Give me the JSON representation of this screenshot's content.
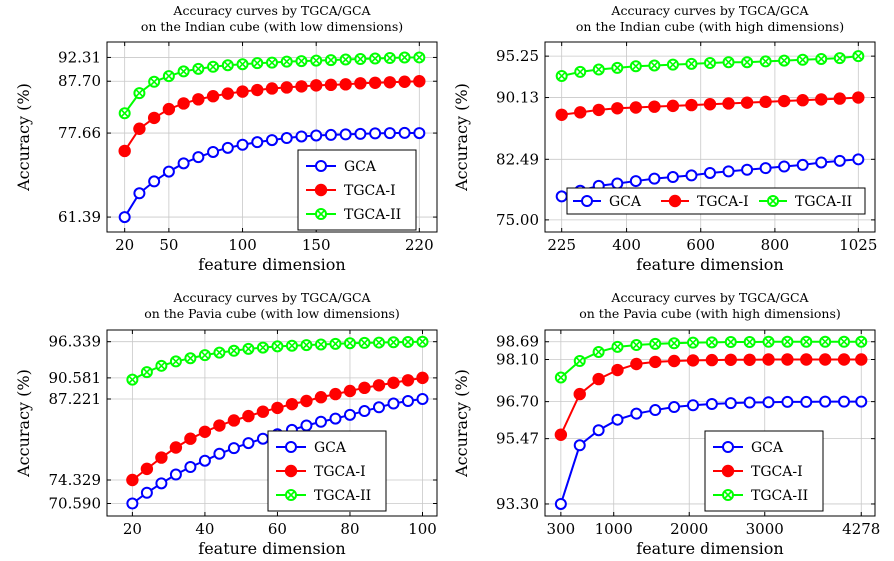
{
  "chart_data": [
    {
      "type": "line",
      "title": [
        "Accuracy curves by TGCA/GCA",
        "on the Indian cube (with low dimensions)"
      ],
      "xlabel": "feature dimension",
      "ylabel": "Accuracy (%)",
      "xlim": [
        8,
        232
      ],
      "ylim": [
        58.5,
        95.3
      ],
      "xticks": [
        20,
        50,
        100,
        150,
        220
      ],
      "yticks": [
        61.39,
        77.66,
        87.7,
        92.31
      ],
      "ytick_labels": [
        "61.39",
        "77.66",
        "87.70",
        "92.31"
      ],
      "grid": true,
      "legend_position": "lower-right",
      "x": [
        20,
        30,
        40,
        50,
        60,
        70,
        80,
        90,
        100,
        110,
        120,
        130,
        140,
        150,
        160,
        170,
        180,
        190,
        200,
        210,
        220
      ],
      "series": [
        {
          "name": "GCA",
          "color": "#0000ff",
          "marker": "open-circle",
          "values": [
            61.39,
            66.0,
            68.3,
            70.2,
            71.8,
            73.0,
            74.0,
            74.8,
            75.4,
            75.9,
            76.3,
            76.7,
            77.0,
            77.2,
            77.3,
            77.4,
            77.5,
            77.6,
            77.65,
            77.7,
            77.66
          ]
        },
        {
          "name": "TGCA-I",
          "color": "#ff0000",
          "marker": "filled-circle",
          "values": [
            74.2,
            78.5,
            80.6,
            82.3,
            83.4,
            84.2,
            84.8,
            85.3,
            85.7,
            86.0,
            86.3,
            86.5,
            86.7,
            86.9,
            87.0,
            87.1,
            87.3,
            87.4,
            87.5,
            87.6,
            87.7
          ]
        },
        {
          "name": "TGCA-II",
          "color": "#00ff00",
          "marker": "crossed-circle",
          "values": [
            81.5,
            85.4,
            87.6,
            88.7,
            89.6,
            90.1,
            90.5,
            90.8,
            91.0,
            91.2,
            91.3,
            91.5,
            91.6,
            91.7,
            91.8,
            91.9,
            92.0,
            92.1,
            92.2,
            92.3,
            92.31
          ]
        }
      ]
    },
    {
      "type": "line",
      "title": [
        "Accuracy curves by TGCA/GCA",
        "on the Indian cube (with high dimensions)"
      ],
      "xlabel": "feature dimension",
      "ylabel": "Accuracy (%)",
      "xlim": [
        180,
        1070
      ],
      "ylim": [
        73.5,
        97.0
      ],
      "xticks": [
        225,
        400,
        600,
        800,
        1025
      ],
      "yticks": [
        75.0,
        82.49,
        90.13,
        95.25
      ],
      "ytick_labels": [
        "75.00",
        "82.49",
        "90.13",
        "95.25"
      ],
      "grid": true,
      "legend_position": "lower-center",
      "x": [
        225,
        275,
        325,
        375,
        425,
        475,
        525,
        575,
        625,
        675,
        725,
        775,
        825,
        875,
        925,
        975,
        1025
      ],
      "series": [
        {
          "name": "GCA",
          "color": "#0000ff",
          "marker": "open-circle",
          "values": [
            77.9,
            78.6,
            79.2,
            79.5,
            79.8,
            80.1,
            80.3,
            80.5,
            80.8,
            81.0,
            81.2,
            81.4,
            81.6,
            81.8,
            82.1,
            82.3,
            82.49
          ]
        },
        {
          "name": "TGCA-I",
          "color": "#ff0000",
          "marker": "filled-circle",
          "values": [
            88.0,
            88.3,
            88.6,
            88.8,
            88.9,
            89.0,
            89.1,
            89.2,
            89.3,
            89.4,
            89.5,
            89.6,
            89.7,
            89.8,
            89.9,
            90.0,
            90.13
          ]
        },
        {
          "name": "TGCA-II",
          "color": "#00ff00",
          "marker": "crossed-circle",
          "values": [
            92.8,
            93.3,
            93.6,
            93.8,
            94.0,
            94.1,
            94.2,
            94.3,
            94.4,
            94.5,
            94.5,
            94.6,
            94.7,
            94.8,
            94.9,
            95.0,
            95.25
          ]
        }
      ]
    },
    {
      "type": "line",
      "title": [
        "Accuracy curves by TGCA/GCA",
        "on the Pavia cube (with low dimensions)"
      ],
      "xlabel": "feature dimension",
      "ylabel": "Accuracy (%)",
      "xlim": [
        13,
        104
      ],
      "ylim": [
        68.6,
        98.2
      ],
      "xticks": [
        20,
        40,
        60,
        80,
        100
      ],
      "yticks": [
        70.59,
        74.329,
        87.221,
        90.581,
        96.339
      ],
      "ytick_labels": [
        "70.590",
        "74.329",
        "87.221",
        "90.581",
        "96.339"
      ],
      "grid": true,
      "legend_position": "lower-right",
      "x": [
        20,
        24,
        28,
        32,
        36,
        40,
        44,
        48,
        52,
        56,
        60,
        64,
        68,
        72,
        76,
        80,
        84,
        88,
        92,
        96,
        100
      ],
      "series": [
        {
          "name": "GCA",
          "color": "#0000ff",
          "marker": "open-circle",
          "values": [
            70.59,
            72.3,
            73.8,
            75.2,
            76.4,
            77.4,
            78.5,
            79.4,
            80.2,
            80.9,
            81.6,
            82.3,
            83.0,
            83.6,
            84.1,
            84.7,
            85.3,
            85.9,
            86.5,
            86.9,
            87.221
          ]
        },
        {
          "name": "TGCA-I",
          "color": "#ff0000",
          "marker": "filled-circle",
          "values": [
            74.329,
            76.1,
            77.9,
            79.5,
            80.9,
            82.0,
            83.0,
            83.8,
            84.5,
            85.2,
            85.8,
            86.4,
            86.9,
            87.5,
            88.0,
            88.5,
            89.0,
            89.4,
            89.8,
            90.2,
            90.581
          ]
        },
        {
          "name": "TGCA-II",
          "color": "#00ff00",
          "marker": "crossed-circle",
          "values": [
            90.3,
            91.5,
            92.5,
            93.2,
            93.7,
            94.2,
            94.6,
            94.9,
            95.2,
            95.4,
            95.6,
            95.7,
            95.8,
            95.9,
            96.0,
            96.1,
            96.15,
            96.2,
            96.25,
            96.3,
            96.339
          ]
        }
      ]
    },
    {
      "type": "line",
      "title": [
        "Accuracy curves by TGCA/GCA",
        "on the Pavia cube (with high dimensions)"
      ],
      "xlabel": "feature dimension",
      "ylabel": "Accuracy (%)",
      "xlim": [
        90,
        4460
      ],
      "ylim": [
        92.9,
        99.08
      ],
      "xticks": [
        300,
        1000,
        2000,
        3000,
        4278
      ],
      "yticks": [
        93.3,
        95.47,
        96.7,
        98.1,
        98.69
      ],
      "ytick_labels": [
        "93.30",
        "95.47",
        "96.70",
        "98.10",
        "98.69"
      ],
      "grid": true,
      "legend_position": "lower-left",
      "x": [
        300,
        550,
        800,
        1050,
        1300,
        1550,
        1800,
        2050,
        2300,
        2550,
        2800,
        3050,
        3300,
        3550,
        3800,
        4050,
        4278
      ],
      "series": [
        {
          "name": "GCA",
          "color": "#0000ff",
          "marker": "open-circle",
          "values": [
            93.3,
            95.25,
            95.75,
            96.1,
            96.3,
            96.42,
            96.52,
            96.58,
            96.62,
            96.65,
            96.67,
            96.68,
            96.69,
            96.69,
            96.7,
            96.7,
            96.7
          ]
        },
        {
          "name": "TGCA-I",
          "color": "#ff0000",
          "marker": "filled-circle",
          "values": [
            95.6,
            96.95,
            97.45,
            97.75,
            97.95,
            98.02,
            98.05,
            98.07,
            98.08,
            98.09,
            98.09,
            98.1,
            98.1,
            98.1,
            98.1,
            98.1,
            98.1
          ]
        },
        {
          "name": "TGCA-II",
          "color": "#00ff00",
          "marker": "crossed-circle",
          "values": [
            97.5,
            98.05,
            98.35,
            98.52,
            98.58,
            98.62,
            98.64,
            98.66,
            98.67,
            98.68,
            98.68,
            98.69,
            98.69,
            98.69,
            98.69,
            98.69,
            98.69
          ]
        }
      ]
    }
  ]
}
